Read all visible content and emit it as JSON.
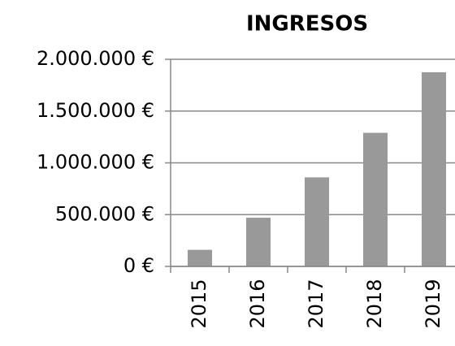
{
  "chart_data": {
    "type": "bar",
    "title": "INGRESOS",
    "categories": [
      "2015",
      "2016",
      "2017",
      "2018",
      "2019"
    ],
    "values": [
      160000,
      470000,
      860000,
      1290000,
      1875000
    ],
    "color": "#999999",
    "ylim": [
      0,
      2000000
    ],
    "yticks": [
      {
        "value": 0,
        "label": "0 €"
      },
      {
        "value": 500000,
        "label": "500.000 €"
      },
      {
        "value": 1000000,
        "label": "1.000.000 €"
      },
      {
        "value": 1500000,
        "label": "1.500.000 €"
      },
      {
        "value": 2000000,
        "label": "2.000.000 €"
      }
    ],
    "grid": true
  }
}
